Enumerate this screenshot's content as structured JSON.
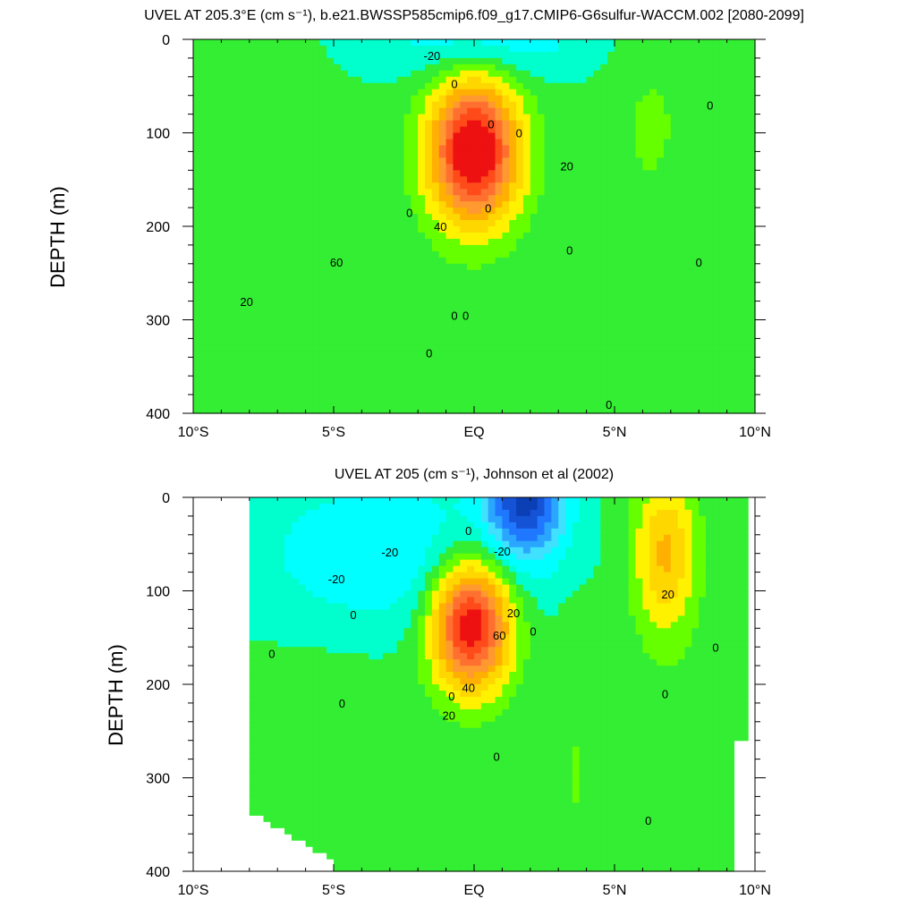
{
  "chart_data": [
    {
      "type": "contour",
      "title": "UVEL AT 205.3°E (cm s⁻¹), b.e21.BWSSP585cmip6.f09_g17.CMIP6-G6sulfur-WACCM.002 [2080-2099]",
      "ylabel": "DEPTH (m)",
      "xticks": [
        "10°S",
        "5°S",
        "EQ",
        "5°N",
        "10°N"
      ],
      "xtick_values": [
        -10,
        -5,
        0,
        5,
        10
      ],
      "yticks": [
        "0",
        "100",
        "200",
        "300",
        "400"
      ],
      "ytick_values": [
        0,
        100,
        200,
        300,
        400
      ],
      "xlim": [
        -10,
        10
      ],
      "ylim": [
        400,
        0
      ],
      "units": "cm s⁻¹",
      "contour_interval": 10,
      "contour_labels": [
        "-20",
        "0",
        "0",
        "60",
        "20",
        "0",
        "0",
        "0",
        "40",
        "20",
        "0",
        "0",
        "0",
        "0",
        "0",
        "0",
        "0"
      ],
      "features": [
        {
          "kind": "eastward core",
          "lat": 0.0,
          "depth": 120,
          "max": 90
        },
        {
          "kind": "westward surface",
          "lat": 0.0,
          "depth": 10,
          "min": -25
        },
        {
          "kind": "eastward NECC",
          "lat": 6.5,
          "depth": 90,
          "max": 8
        }
      ]
    },
    {
      "type": "contour",
      "title": "UVEL AT 205 (cm s⁻¹), Johnson et al (2002)",
      "ylabel": "DEPTH (m)",
      "xticks": [
        "10°S",
        "5°S",
        "EQ",
        "5°N",
        "10°N"
      ],
      "xtick_values": [
        -10,
        -5,
        0,
        5,
        10
      ],
      "yticks": [
        "0",
        "100",
        "200",
        "300",
        "400"
      ],
      "ytick_values": [
        0,
        100,
        200,
        300,
        400
      ],
      "xlim": [
        -10,
        10
      ],
      "ylim": [
        400,
        0
      ],
      "units": "cm s⁻¹",
      "contour_interval": 10,
      "contour_labels": [
        "0",
        "-20",
        "-20",
        "-20",
        "0",
        "20",
        "60",
        "20",
        "40",
        "0",
        "0",
        "20",
        "0",
        "0",
        "0",
        "0",
        "0",
        "0"
      ],
      "features": [
        {
          "kind": "eastward core",
          "lat": 0.0,
          "depth": 130,
          "max": 90
        },
        {
          "kind": "westward surface",
          "lat": 1.8,
          "depth": 10,
          "min": -60
        },
        {
          "kind": "eastward NECC",
          "lat": 6.8,
          "depth": 60,
          "max": 40
        }
      ]
    }
  ]
}
